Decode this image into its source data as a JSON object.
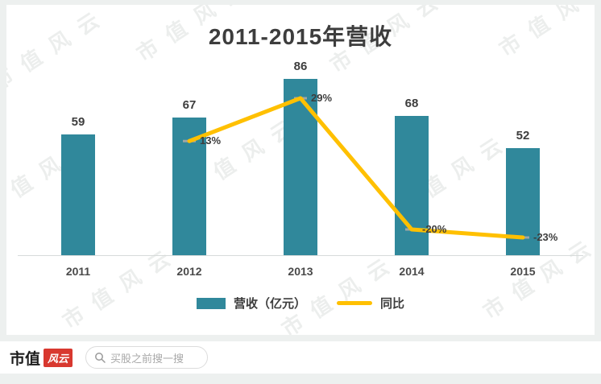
{
  "chart_data": {
    "type": "bar+line",
    "title": "2011-2015年营收",
    "categories": [
      "2011",
      "2012",
      "2013",
      "2014",
      "2015"
    ],
    "series": [
      {
        "name": "营收（亿元）",
        "type": "bar",
        "values": [
          59,
          67,
          86,
          68,
          52
        ],
        "color": "#30889B"
      },
      {
        "name": "同比",
        "type": "line",
        "values": [
          null,
          13,
          29,
          -20,
          -23
        ],
        "labels": [
          "",
          "13%",
          "29%",
          "-20%",
          "-23%"
        ],
        "color": "#FFC000"
      }
    ],
    "ylabel": "",
    "xlabel": "",
    "legend_position": "bottom",
    "grid": false
  },
  "watermark": {
    "text": "市值风云"
  },
  "footer": {
    "brand_black": "市值",
    "brand_red": "风云",
    "search_placeholder": "买股之前搜一搜"
  }
}
